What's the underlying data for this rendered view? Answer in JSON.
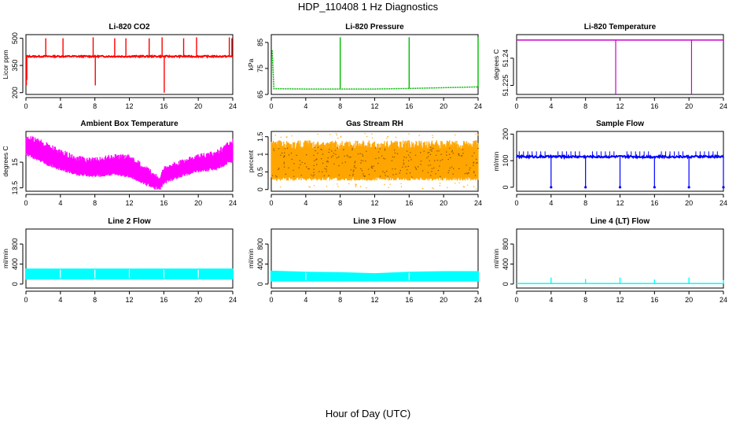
{
  "figure": {
    "title": "HDP_110408  1 Hz Diagnostics",
    "xlabel": "Hour of Day (UTC)"
  },
  "chart_data": [
    {
      "type": "line",
      "title": "Li-820 CO2",
      "xlabel": "",
      "ylabel": "Licor ppm",
      "color": "#ff0000",
      "xlim": [
        0,
        24
      ],
      "ylim": [
        190,
        520
      ],
      "xticks": [
        0,
        4,
        8,
        12,
        16,
        20,
        24
      ],
      "yticks": [
        200,
        350,
        500
      ],
      "baseline": 400,
      "band": 8,
      "spikes": [
        {
          "x": 0.05,
          "y": 240
        },
        {
          "x": 0.1,
          "y": 270
        },
        {
          "x": 2.3,
          "y": 500
        },
        {
          "x": 4.3,
          "y": 500
        },
        {
          "x": 7.8,
          "y": 505
        },
        {
          "x": 8.05,
          "y": 240
        },
        {
          "x": 10.3,
          "y": 500
        },
        {
          "x": 11.6,
          "y": 500
        },
        {
          "x": 14.3,
          "y": 500
        },
        {
          "x": 15.8,
          "y": 505
        },
        {
          "x": 16.05,
          "y": 200
        },
        {
          "x": 18.3,
          "y": 500
        },
        {
          "x": 19.8,
          "y": 505
        },
        {
          "x": 23.6,
          "y": 505
        },
        {
          "x": 23.9,
          "y": 500
        }
      ]
    },
    {
      "type": "line",
      "title": "Li-820 Pressure",
      "xlabel": "",
      "ylabel": "kPa",
      "color": "#00bb00",
      "xlim": [
        0,
        24
      ],
      "ylim": [
        65,
        88
      ],
      "xticks": [
        0,
        4,
        8,
        12,
        16,
        20,
        24
      ],
      "yticks": [
        65,
        75,
        85
      ],
      "points": [
        [
          0.1,
          82
        ],
        [
          0.3,
          67.2
        ],
        [
          4,
          67.1
        ],
        [
          8,
          67.1
        ],
        [
          12,
          67.1
        ],
        [
          16,
          67.3
        ],
        [
          20,
          67.6
        ],
        [
          24,
          67.9
        ]
      ],
      "spikes": [
        {
          "x": 0.1,
          "y": 82
        },
        {
          "x": 8,
          "y": 87
        },
        {
          "x": 16,
          "y": 87
        },
        {
          "x": 24,
          "y": 87
        }
      ]
    },
    {
      "type": "line",
      "title": "Li-820 Temperature",
      "xlabel": "",
      "ylabel": "degrees C",
      "color": "#cc00cc",
      "xlim": [
        0,
        24
      ],
      "ylim": [
        51.22,
        51.253
      ],
      "xticks": [
        0,
        4,
        8,
        12,
        16,
        20,
        24
      ],
      "yticks": [
        51.225,
        51.24
      ],
      "points": [
        [
          0,
          51.25
        ],
        [
          24,
          51.25
        ]
      ],
      "drops": [
        {
          "x": 11.5,
          "y": 51.22
        },
        {
          "x": 20.3,
          "y": 51.22
        }
      ]
    },
    {
      "type": "line",
      "title": "Ambient Box Temperature",
      "xlabel": "",
      "ylabel": "degrees C",
      "color": "#ff00ff",
      "xlim": [
        0,
        24
      ],
      "ylim": [
        13.3,
        16.8
      ],
      "xticks": [
        0,
        4,
        8,
        12,
        16,
        20,
        24
      ],
      "yticks": [
        13.5,
        15.0
      ],
      "upper": [
        [
          0,
          16.5
        ],
        [
          2,
          16.1
        ],
        [
          4,
          15.6
        ],
        [
          6,
          15.2
        ],
        [
          8,
          15.1
        ],
        [
          10,
          15.3
        ],
        [
          12,
          15.3
        ],
        [
          14,
          14.6
        ],
        [
          15.5,
          14.0
        ],
        [
          16,
          14.6
        ],
        [
          18,
          15.0
        ],
        [
          20,
          15.3
        ],
        [
          22,
          15.5
        ],
        [
          24,
          16.2
        ]
      ],
      "lower": [
        [
          0,
          15.6
        ],
        [
          2,
          15.1
        ],
        [
          4,
          14.7
        ],
        [
          6,
          14.4
        ],
        [
          8,
          14.3
        ],
        [
          10,
          14.4
        ],
        [
          12,
          14.3
        ],
        [
          14,
          13.8
        ],
        [
          15.5,
          13.5
        ],
        [
          16,
          13.9
        ],
        [
          18,
          14.3
        ],
        [
          20,
          14.6
        ],
        [
          22,
          14.7
        ],
        [
          24,
          15.2
        ]
      ]
    },
    {
      "type": "scatter",
      "title": "Gas Stream RH",
      "xlabel": "",
      "ylabel": "percent",
      "color": "#ffa500",
      "color2": "#8b5a00",
      "xlim": [
        0,
        24
      ],
      "ylim": [
        -0.05,
        1.65
      ],
      "xticks": [
        0,
        4,
        8,
        12,
        16,
        20,
        24
      ],
      "yticks": [
        0.0,
        0.5,
        1.0,
        1.5
      ],
      "band_low": 0.25,
      "band_high": 1.4,
      "outlier_low": 0.0,
      "outlier_high": 1.6
    },
    {
      "type": "line",
      "title": "Sample Flow",
      "xlabel": "",
      "ylabel": "ml/min",
      "color": "#0000ff",
      "xlim": [
        0,
        24
      ],
      "ylim": [
        -15,
        210
      ],
      "xticks": [
        0,
        4,
        8,
        12,
        16,
        20,
        24
      ],
      "yticks": [
        0,
        100,
        200
      ],
      "baseline": 115,
      "band": 8,
      "drops": [
        {
          "x": 4,
          "y": 0
        },
        {
          "x": 8,
          "y": 0
        },
        {
          "x": 12,
          "y": 0
        },
        {
          "x": 16,
          "y": 0
        },
        {
          "x": 20,
          "y": 0
        },
        {
          "x": 24,
          "y": 0
        }
      ],
      "spike_hours": [
        0.3,
        0.8,
        1.3,
        1.8,
        2.3,
        2.8,
        3.3,
        4.8,
        5.3,
        5.8,
        6.3,
        6.8,
        7.3,
        8.8,
        9.3,
        9.8,
        10.3,
        10.8,
        11.3,
        12.8,
        13.3,
        13.8,
        14.3,
        14.8,
        15.3,
        16.8,
        17.3,
        17.8,
        18.3,
        18.8,
        19.3,
        20.8,
        21.3,
        21.8,
        22.3,
        22.8,
        23.3
      ],
      "spike_y": 135
    },
    {
      "type": "area",
      "title": "Line 2 Flow",
      "xlabel": "",
      "ylabel": "ml/min",
      "color": "#00ffff",
      "xlim": [
        0,
        24
      ],
      "ylim": [
        -80,
        1100
      ],
      "xticks": [
        0,
        4,
        8,
        12,
        16,
        20,
        24
      ],
      "yticks": [
        0,
        400,
        800
      ],
      "upper": [
        [
          0,
          300
        ],
        [
          24,
          300
        ]
      ],
      "lower": [
        [
          0,
          100
        ],
        [
          24,
          100
        ]
      ],
      "gaps": [
        4,
        8,
        12,
        16,
        20
      ]
    },
    {
      "type": "area",
      "title": "Line 3 Flow",
      "xlabel": "",
      "ylabel": "ml/min",
      "color": "#00ffff",
      "xlim": [
        0,
        24
      ],
      "ylim": [
        -80,
        1100
      ],
      "xticks": [
        0,
        4,
        8,
        12,
        16,
        20,
        24
      ],
      "yticks": [
        0,
        400,
        800
      ],
      "upper": [
        [
          0,
          260
        ],
        [
          4,
          240
        ],
        [
          8,
          230
        ],
        [
          12,
          210
        ],
        [
          16,
          240
        ],
        [
          20,
          250
        ],
        [
          24,
          250
        ]
      ],
      "lower": [
        [
          0,
          60
        ],
        [
          4,
          60
        ],
        [
          8,
          60
        ],
        [
          12,
          60
        ],
        [
          16,
          60
        ],
        [
          20,
          60
        ],
        [
          24,
          60
        ]
      ],
      "gaps": [
        4,
        16
      ]
    },
    {
      "type": "line",
      "title": "Line 4 (LT) Flow",
      "xlabel": "",
      "ylabel": "ml/min",
      "color": "#00ffff",
      "xlim": [
        0,
        24
      ],
      "ylim": [
        -80,
        1100
      ],
      "xticks": [
        0,
        4,
        8,
        12,
        16,
        20,
        24
      ],
      "yticks": [
        0,
        400,
        800
      ],
      "points": [
        [
          0,
          10
        ],
        [
          24,
          10
        ]
      ],
      "spikes": [
        {
          "x": 4,
          "y": 130
        },
        {
          "x": 8,
          "y": 100
        },
        {
          "x": 12,
          "y": 130
        },
        {
          "x": 16,
          "y": 90
        },
        {
          "x": 20,
          "y": 130
        },
        {
          "x": 24,
          "y": 80
        }
      ]
    }
  ]
}
